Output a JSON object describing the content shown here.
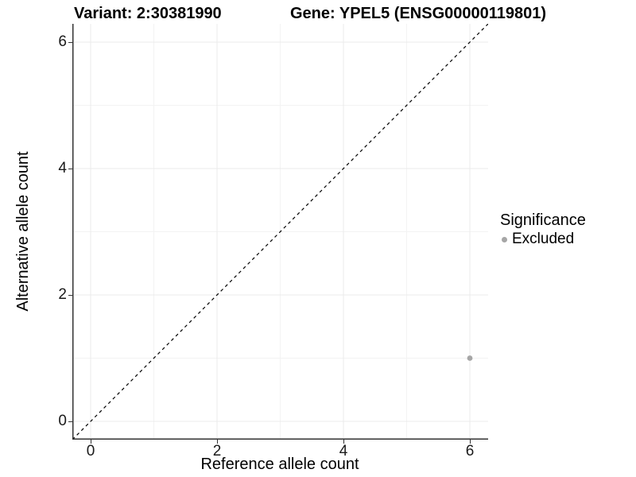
{
  "figure": {
    "title_variant": "Variant: 2:30381990",
    "title_gene": "Gene: YPEL5 (ENSG00000119801)"
  },
  "chart_data": {
    "type": "scatter",
    "title": "Variant: 2:30381990    Gene: YPEL5 (ENSG00000119801)",
    "xlabel": "Reference allele count",
    "ylabel": "Alternative allele count",
    "xlim": [
      -0.29,
      6.29
    ],
    "ylim": [
      -0.29,
      6.29
    ],
    "x_ticks": [
      0,
      2,
      4,
      6
    ],
    "y_ticks": [
      0,
      2,
      4,
      6
    ],
    "x_tick_labels": [
      "0",
      "2",
      "4",
      "6"
    ],
    "y_tick_labels_top_to_bottom": [
      "6",
      "4",
      "2",
      "0"
    ],
    "grid": true,
    "minor_ticks": [
      1,
      3,
      5
    ],
    "identity_line": {
      "style": "dashed",
      "color": "#000000",
      "from": [
        -0.29,
        -0.29
      ],
      "to": [
        6.29,
        6.29
      ]
    },
    "series": [
      {
        "name": "Excluded",
        "color": "#a6a6a6",
        "points": [
          {
            "x": 6,
            "y": 1
          }
        ]
      }
    ],
    "legend": {
      "title": "Significance",
      "position": "right",
      "entries": [
        {
          "label": "Excluded",
          "color": "#a6a6a6"
        }
      ]
    }
  },
  "colors": {
    "background": "#ffffff",
    "grid_major": "#ebebeb",
    "grid_minor": "#f3f3f3",
    "axis_line": "#333333",
    "point": "#a6a6a6",
    "text": "#000000"
  }
}
